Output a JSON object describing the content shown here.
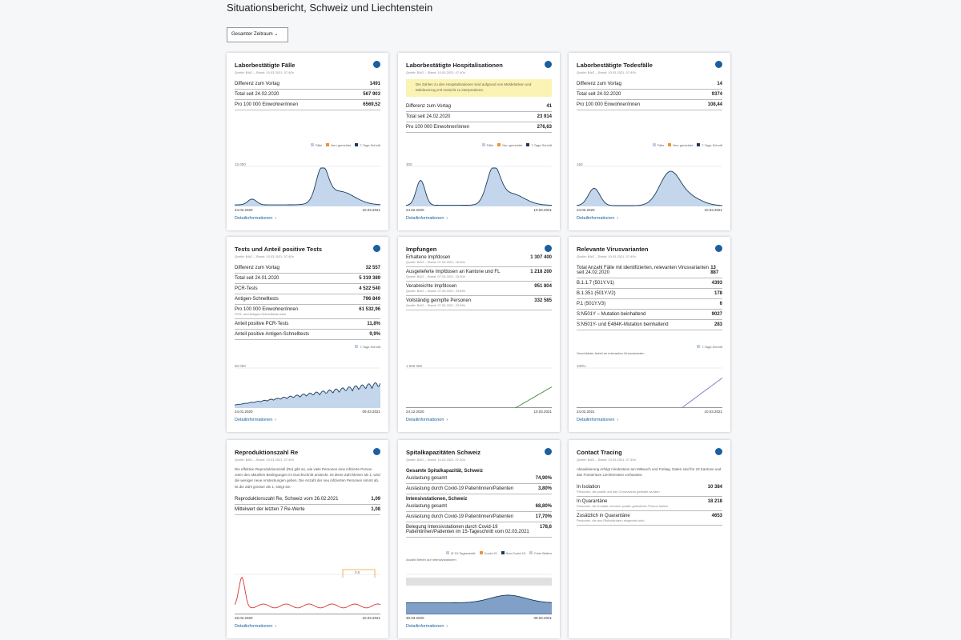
{
  "header": {
    "title": "Situationsbericht, Schweiz und Liechtenstein",
    "filter": "Gesamter Zeitraum"
  },
  "cards": [
    {
      "title": "Laborbestätigte Fälle",
      "source": "Quelle: BAG – Stand: 10.03.2021, 07.40h",
      "rows": [
        {
          "label": "Differenz zum Vortag",
          "value": "1491"
        },
        {
          "label": "Total seit 24.02.2020",
          "value": "567 903"
        },
        {
          "label": "Pro 100 000 Einwohner/innen",
          "value": "6569,52"
        }
      ],
      "legend": [
        "Fälle",
        "Neu gemeldet",
        "7-Tage-Schnitt"
      ],
      "axis_label": "15 000",
      "date_start": "24.02.2020",
      "date_end": "10.03.2021",
      "link": "Detailinformationen"
    },
    {
      "title": "Laborbestätigte Hospitalisationen",
      "source": "Quelle: BAG – Stand: 10.03.2021, 07.40h",
      "note": "Die Zahlen zu den Hospitalisationen sind aufgrund von Meldelücken und Meldeverzug mit Vorsicht zu interpretieren.",
      "rows": [
        {
          "label": "Differenz zum Vortag",
          "value": "41"
        },
        {
          "label": "Total seit 24.02.2020",
          "value": "23 914"
        },
        {
          "label": "Pro 100 000 Einwohner/innen",
          "value": "276,63"
        }
      ],
      "legend": [
        "Fälle",
        "Neu gemeldet",
        "7-Tage-Schnitt"
      ],
      "axis_label": "300",
      "date_start": "24.02.2020",
      "date_end": "10.03.2021",
      "link": "Detailinformationen"
    },
    {
      "title": "Laborbestätigte Todesfälle",
      "source": "Quelle: BAG – Stand: 10.03.2021, 07.40h",
      "rows": [
        {
          "label": "Differenz zum Vortag",
          "value": "14"
        },
        {
          "label": "Total seit 24.02.2020",
          "value": "9374"
        },
        {
          "label": "Pro 100 000 Einwohner/innen",
          "value": "108,44"
        }
      ],
      "legend": [
        "Fälle",
        "Neu gemeldet",
        "7-Tage-Schnitt"
      ],
      "axis_label": "150",
      "date_start": "24.02.2020",
      "date_end": "10.03.2021",
      "link": "Detailinformationen"
    },
    {
      "title": "Tests und Anteil positive Tests",
      "source": "Quelle: BAG – Stand: 10.03.2021, 07.40h",
      "rows": [
        {
          "label": "Differenz zum Vortag",
          "value": "32 557"
        },
        {
          "label": "Total seit 24.01.2020",
          "value": "5 319 389"
        },
        {
          "label": "PCR-Tests",
          "value": "4 522 540"
        },
        {
          "label": "Antigen-Schnelltests",
          "value": "796 849"
        },
        {
          "label": "Pro 100 000 Einwohner/innen",
          "value": "61 532,96",
          "sub": "PCR- und Antigen-Schnelltests total"
        },
        {
          "label": "Anteil positive PCR-Tests",
          "value": "11,8%"
        },
        {
          "label": "Anteil positive Antigen-Schnelltests",
          "value": "9,9%"
        }
      ],
      "legend": [
        "7-Tage-Schnitt"
      ],
      "axis_label": "60 000",
      "date_start": "24.01.2020",
      "date_end": "09.03.2021",
      "link": "Detailinformationen"
    },
    {
      "title": "Impfungen",
      "rows": [
        {
          "label": "Erhaltene Impfdosen",
          "value": "1 307 400",
          "sub": "Quelle: BAG – Stand: 07.03.2021, 15.00h"
        },
        {
          "label": "Ausgelieferte Impfdosen an Kantone und FL",
          "value": "1 218 200",
          "sub": "Quelle: BAG – Stand: 07.03.2021, 15.00h"
        },
        {
          "label": "Verabreichte Impfdosen",
          "value": "951 804",
          "sub": "Quelle: BAG – Stand: 07.03.2021, 23.59h"
        },
        {
          "label": "Vollständig geimpfte Personen",
          "value": "332 585",
          "sub": "Quelle: BAG – Stand: 07.03.2021, 23.59h"
        }
      ],
      "axis_label": "1 500 000",
      "date_start": "24.12.2020",
      "date_end": "10.03.2021",
      "link": "Detailinformationen"
    },
    {
      "title": "Relevante Virusvarianten",
      "source": "Quelle: BAG – Stand: 10.03.2021, 07.40h",
      "rows": [
        {
          "label": "Total Anzahl Fälle mit identifizierten, relevanten Virusvarianten seit 24.02.2020",
          "value": "13 887"
        },
        {
          "label": "B.1.1.7 (501Y.V1)",
          "value": "4393"
        },
        {
          "label": "B.1.351 (501Y.V2)",
          "value": "178"
        },
        {
          "label": "P.1 (501Y.V3)",
          "value": "6"
        },
        {
          "label": "S:N501Y – Mutation beinhaltend",
          "value": "9027"
        },
        {
          "label": "S:N501Y- und E484K-Mutation beinhaltend",
          "value": "283"
        }
      ],
      "legend": [
        "7-Tage-Schnitt"
      ],
      "chart_label": "Geschätzter Anteil an relevanten Virusvarianten",
      "axis_label": "100%",
      "date_start": "24.02.2021",
      "date_end": "10.03.2021",
      "link": "Detailinformationen"
    },
    {
      "title": "Reproduktionszahl Re",
      "source": "Quelle: BAG – Stand: 10.03.2021, 07.40h",
      "intro": "Die effektive Reproduktionszahl (Re) gibt an, wie viele Personen eine infizierte Person unter den aktuellen Bedingungen im Durchschnitt ansteckt. Ist diese Zahl kleiner als 1, wird die weniger neue Ansteckungen geben. Die Anzahl der neu infizierten Personen nimmt ab, ist die Zahl grösser als 1, steigt sie.",
      "rows": [
        {
          "label": "Reproduktionszahl Re, Schweiz vom 26.02.2021",
          "value": "1,09"
        },
        {
          "label": "Mittelwert der letzten 7 Re-Werte",
          "value": "1,08"
        }
      ],
      "axis_label": "0,5",
      "date_start": "25.02.2020",
      "date_end": "10.03.2021",
      "link": "Detailinformationen"
    },
    {
      "title": "Spitalkapazitäten Schweiz",
      "source": "Quelle: BAG – Stand: 10.03.2021, 07.40h",
      "rows": [
        {
          "label": "Gesamte Spitalkapazität, Schweiz",
          "heading": true
        },
        {
          "label": "Auslastung gesamt",
          "value": "74,90%"
        },
        {
          "label": "Auslastung durch Covid-19 Patientinnen/Patienten",
          "value": "3,80%"
        },
        {
          "label": "Intensivstationen, Schweiz",
          "heading": true
        },
        {
          "label": "Auslastung gesamt",
          "value": "68,80%"
        },
        {
          "label": "Auslastung durch Covid-19 Patientinnen/Patienten",
          "value": "17,70%"
        },
        {
          "label": "Belegung Intensivstationen durch Covid-19 Patientinnen/Patienten im 15-Tageschnitt vom 02.03.2021",
          "value": "178,6"
        }
      ],
      "legend": [
        "Ø 15-Tageschnitt",
        "Covid-19",
        "Non-Covid-19",
        "Freie Betten"
      ],
      "chart_label": "Anzahl Betten auf Intensivstationen",
      "date_start": "30.03.2020",
      "date_end": "09.03.2021",
      "link": "Detailinformationen"
    },
    {
      "title": "Contact Tracing",
      "source": "Quelle: BAG – Stand: 10.03.2021, 07.40h",
      "intro": "Aktualisierung erfolgt mindestens am Mittwoch und Freitag. Daten sind für 23 Kantone und das Fürstentum Liechtenstein vorhanden.",
      "rows": [
        {
          "label": "In Isolation",
          "value": "10 384",
          "sub": "Personen, die positiv auf das Coronavirus getestet wurden"
        },
        {
          "label": "In Quarantäne",
          "value": "18 218",
          "sub": "Personen, die Kontakt mit einer positiv getesteten Person hatten"
        },
        {
          "label": "Zusätzlich in Quarantäne",
          "value": "4653",
          "sub": "Personen, die aus Risikoländern eingereist sind"
        }
      ]
    }
  ]
}
